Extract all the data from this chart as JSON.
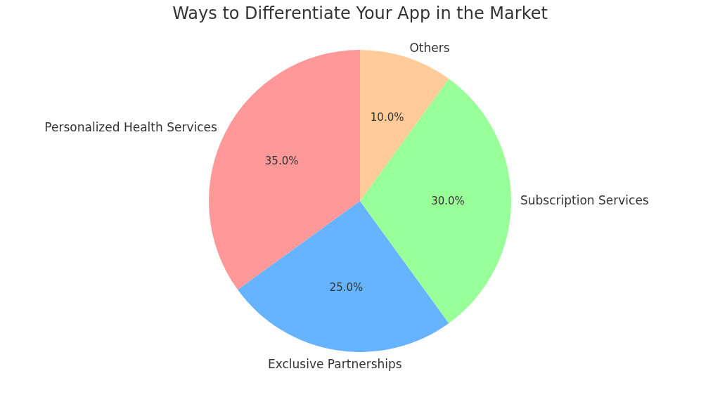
{
  "chart_data": {
    "type": "pie",
    "title": "Ways to Differentiate Your App in the Market",
    "categories": [
      "Personalized Health Services",
      "Exclusive Partnerships",
      "Subscription Services",
      "Others"
    ],
    "values": [
      35,
      25,
      30,
      10
    ],
    "colors": [
      "#ff9999",
      "#66b3ff",
      "#99ff99",
      "#ffcc99"
    ],
    "value_labels": [
      "35.0%",
      "25.0%",
      "30.0%",
      "10.0%"
    ],
    "legend": false
  }
}
